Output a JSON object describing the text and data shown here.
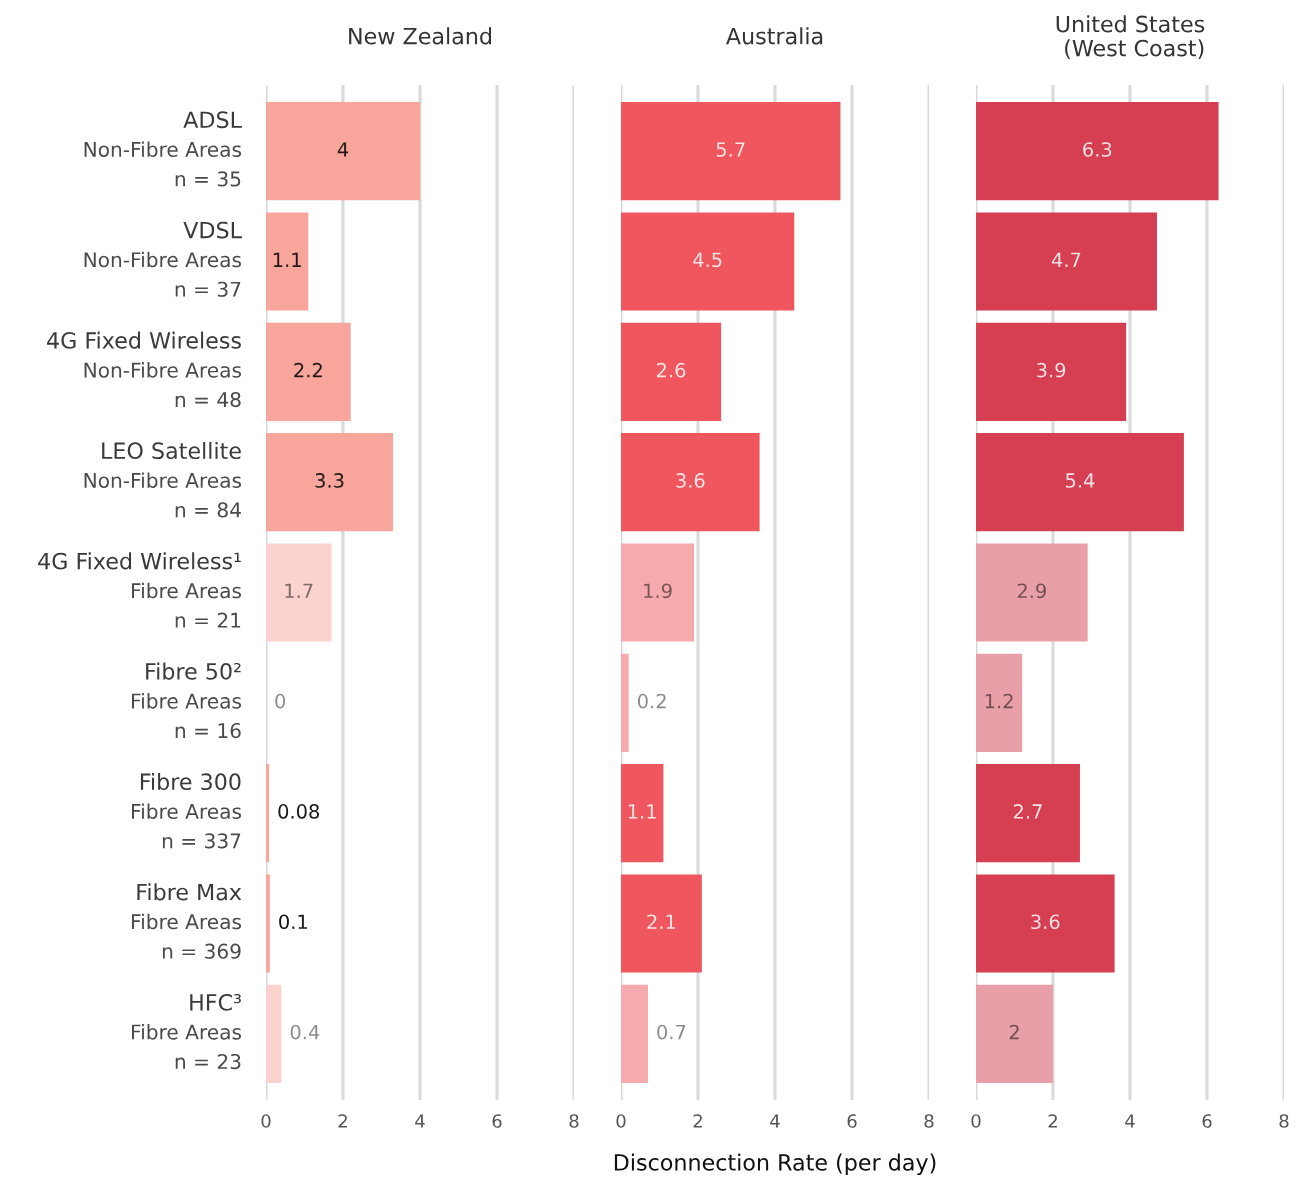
{
  "chart_data": [
    {
      "type": "bar",
      "orientation": "horizontal",
      "title": "New Zealand",
      "categories": [
        "ADSL\nNon-Fibre Areas\nn = 35",
        "VDSL\nNon-Fibre Areas\nn = 37",
        "4G Fixed Wireless\nNon-Fibre Areas\nn = 48",
        "LEO Satellite\nNon-Fibre Areas\nn = 84",
        "4G Fixed Wireless¹\nFibre Areas\nn = 21",
        "Fibre 50²\nFibre Areas\nn = 16",
        "Fibre 300\nFibre Areas\nn = 337",
        "Fibre Max\nFibre Areas\nn = 369",
        "HFC³\nFibre Areas\nn = 23"
      ],
      "values": [
        4,
        1.1,
        2.2,
        3.3,
        1.7,
        0,
        0.08,
        0.1,
        0.4
      ],
      "colors": [
        "#f8a59c",
        "#f8a59c",
        "#f8a59c",
        "#f8a59c",
        "#fbd2cd",
        "#fbd2cd",
        "#f8a59c",
        "#f8a59c",
        "#fbd2cd"
      ],
      "xlim": [
        0,
        8
      ],
      "xticks": [
        0,
        2,
        4,
        6,
        8
      ],
      "grid": "x",
      "data_labels": true
    },
    {
      "type": "bar",
      "orientation": "horizontal",
      "title": "Australia",
      "xlabel": "Disconnection Rate (per day)",
      "tick_labels": "x",
      "categories": [
        "ADSL\nNon-Fibre Areas\nn = 35",
        "VDSL\nNon-Fibre Areas\nn = 37",
        "4G Fixed Wireless\nNon-Fibre Areas\nn = 48",
        "LEO Satellite\nNon-Fibre Areas\nn = 84",
        "4G Fixed Wireless¹\nFibre Areas\nn = 21",
        "Fibre 50²\nFibre Areas\nn = 16",
        "Fibre 300\nFibre Areas\nn = 337",
        "Fibre Max\nFibre Areas\nn = 369",
        "HFC³\nFibre Areas\nn = 23"
      ],
      "values": [
        5.7,
        4.5,
        2.6,
        3.6,
        1.9,
        0.2,
        1.1,
        2.1,
        0.7
      ],
      "colors": [
        "#f0565e",
        "#f0565e",
        "#f0565e",
        "#f0565e",
        "#f6aaae",
        "#f6aaae",
        "#f0565e",
        "#f0565e",
        "#f6aaae"
      ],
      "xlim": [
        0,
        8
      ],
      "xticks": [
        0,
        2,
        4,
        6,
        8
      ],
      "grid": "x",
      "data_labels": true
    },
    {
      "type": "bar",
      "orientation": "horizontal",
      "title": "United States\n(West Coast)",
      "tick_labels": "x",
      "categories": [
        "ADSL\nNon-Fibre Areas\nn = 35",
        "VDSL\nNon-Fibre Areas\nn = 37",
        "4G Fixed Wireless\nNon-Fibre Areas\nn = 48",
        "LEO Satellite\nNon-Fibre Areas\nn = 84",
        "4G Fixed Wireless¹\nFibre Areas\nn = 21",
        "Fibre 50²\nFibre Areas\nn = 16",
        "Fibre 300\nFibre Areas\nn = 337",
        "Fibre Max\nFibre Areas\nn = 369",
        "HFC³\nFibre Areas\nn = 23"
      ],
      "values": [
        6.3,
        4.7,
        3.9,
        5.4,
        2.9,
        1.2,
        2.7,
        3.6,
        2
      ],
      "colors": [
        "#d63e51",
        "#d63e51",
        "#d63e51",
        "#d63e51",
        "#e99fa8",
        "#e99fa8",
        "#d63e51",
        "#d63e51",
        "#e99fa8"
      ],
      "xlim": [
        0,
        8
      ],
      "xticks": [
        0,
        2,
        4,
        6,
        8
      ],
      "grid": "x",
      "data_labels": true
    }
  ]
}
